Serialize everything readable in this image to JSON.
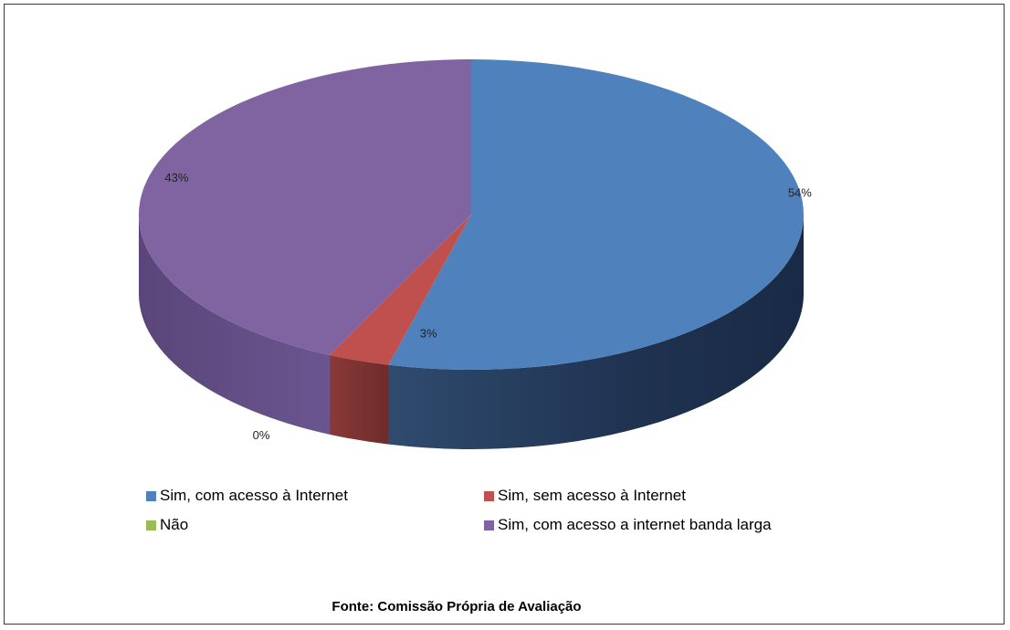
{
  "chart_data": {
    "type": "pie",
    "style": "3d",
    "categories": [
      "Sim, com acesso à Internet",
      "Sim, sem acesso à Internet",
      "Não",
      "Sim, com acesso a internet banda larga"
    ],
    "values": [
      54,
      3,
      0,
      43
    ],
    "labels": [
      "54%",
      "3%",
      "0%",
      "43%"
    ],
    "colors": [
      "#4f81bd",
      "#c0504d",
      "#9bbb59",
      "#8064a2"
    ],
    "legend_position": "bottom"
  },
  "source": "Fonte: Comissão Própria de Avaliação"
}
